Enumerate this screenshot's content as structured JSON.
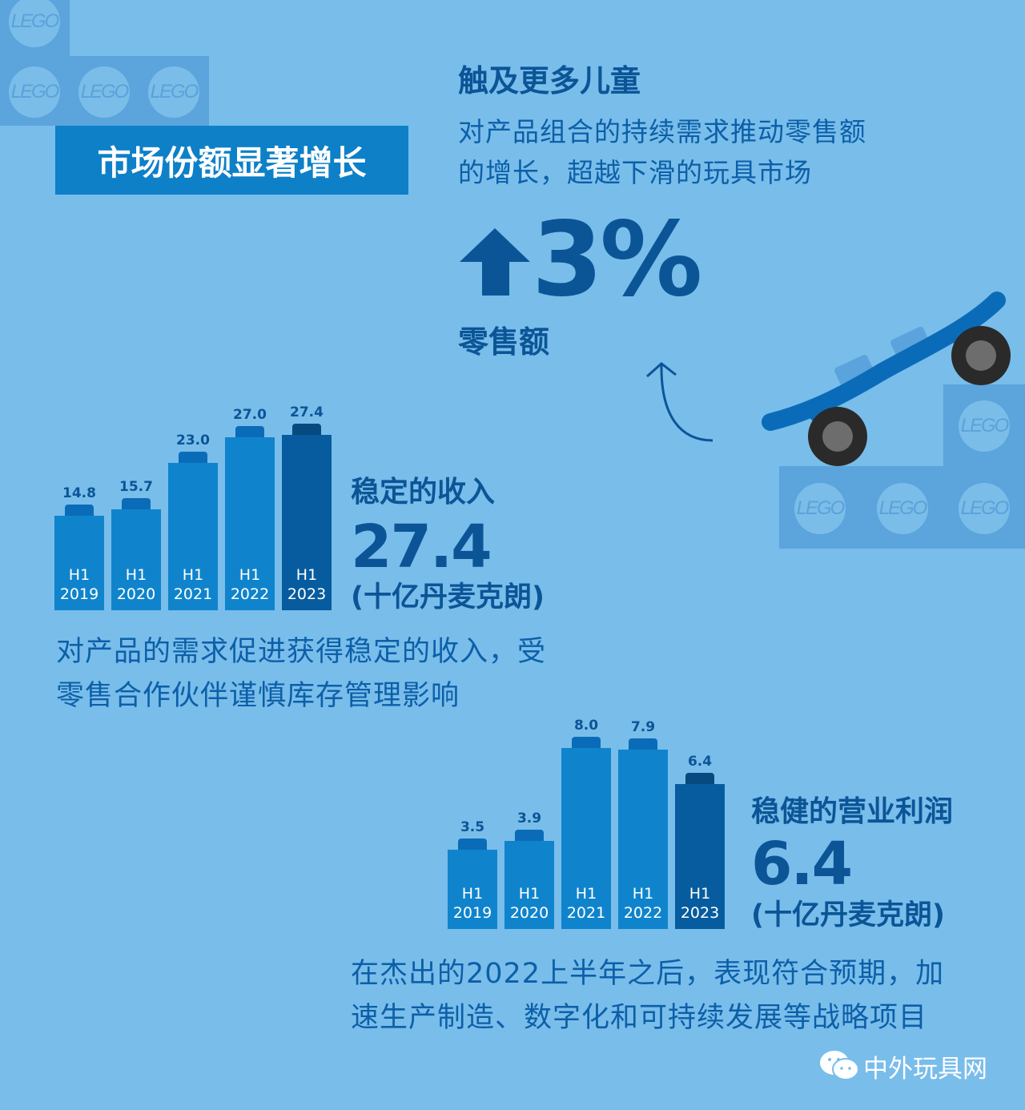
{
  "title": "市场份额显著增长",
  "brick_logo": "LEGO",
  "retail": {
    "heading": "触及更多儿童",
    "lines": [
      "对产品组合的持续需求推动零售额",
      "的增长，超越下滑的玩具市场"
    ],
    "value": "3%",
    "direction": "up",
    "label": "零售额"
  },
  "revenue": {
    "heading": "稳定的收入",
    "value": "27.4",
    "unit": "(十亿丹麦克朗)",
    "lines": [
      "对产品的需求促进获得稳定的收入，受",
      "零售合作伙伴谨慎库存管理影响"
    ]
  },
  "profit": {
    "heading": "稳健的营业利润",
    "value": "6.4",
    "unit": "(十亿丹麦克朗)",
    "lines": [
      "在杰出的2022上半年之后，表现符合预期，加",
      "速生产制造、数字化和可持续发展等战略项目"
    ]
  },
  "watermark": "中外玩具网",
  "colors": {
    "background": "#79bdea",
    "bar": "#0f84cc",
    "bar_highlight": "#065c9e",
    "text": "#0b5597"
  },
  "chart_data": [
    {
      "type": "bar",
      "title": "稳定的收入",
      "categories": [
        "H1 2019",
        "H1 2020",
        "H1 2021",
        "H1 2022",
        "H1 2023"
      ],
      "category_lines": [
        [
          "H1",
          "2019"
        ],
        [
          "H1",
          "2020"
        ],
        [
          "H1",
          "2021"
        ],
        [
          "H1",
          "2022"
        ],
        [
          "H1",
          "2023"
        ]
      ],
      "values": [
        14.8,
        15.7,
        23.0,
        27.0,
        27.4
      ],
      "labels": [
        "14.8",
        "15.7",
        "23.0",
        "27.0",
        "27.4"
      ],
      "highlight_index": 4
    },
    {
      "type": "bar",
      "title": "稳健的营业利润",
      "categories": [
        "H1 2019",
        "H1 2020",
        "H1 2021",
        "H1 2022",
        "H1 2023"
      ],
      "category_lines": [
        [
          "H1",
          "2019"
        ],
        [
          "H1",
          "2020"
        ],
        [
          "H1",
          "2021"
        ],
        [
          "H1",
          "2022"
        ],
        [
          "H1",
          "2023"
        ]
      ],
      "values": [
        3.5,
        3.9,
        8.0,
        7.9,
        6.4
      ],
      "labels": [
        "3.5",
        "3.9",
        "8.0",
        "7.9",
        "6.4"
      ],
      "highlight_index": 4
    }
  ]
}
